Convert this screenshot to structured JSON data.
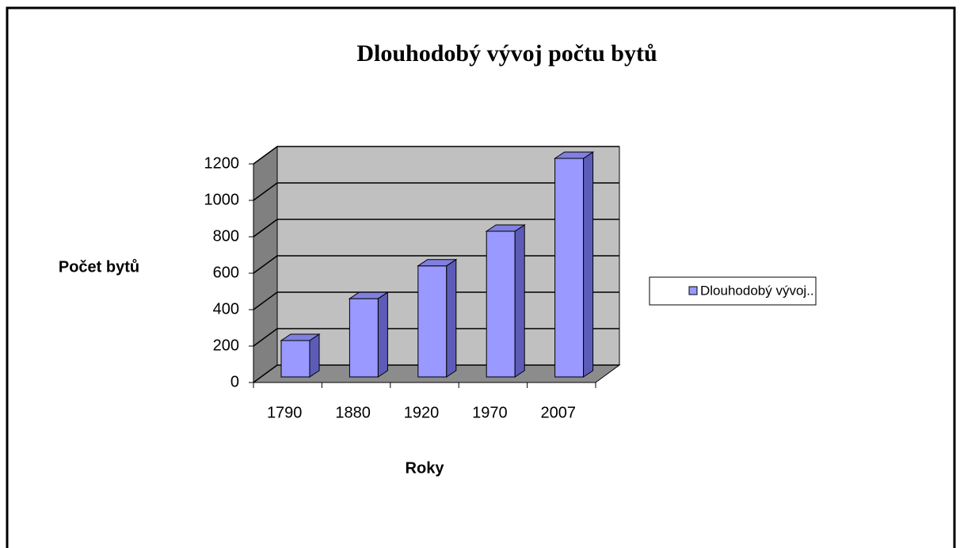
{
  "chart_data": {
    "type": "bar",
    "title": "Dlouhodobý vývoj počtu bytů",
    "x_label": "Roky",
    "y_label": "Počet bytů",
    "categories": [
      "1790",
      "1880",
      "1920",
      "1970",
      "2007"
    ],
    "series": [
      {
        "name": "Dlouhodobý vývoj..",
        "color": "#9999ff",
        "values": [
          200,
          430,
          610,
          800,
          1200
        ]
      }
    ],
    "ylim": [
      0,
      1200
    ],
    "yticks": [
      0,
      200,
      400,
      600,
      800,
      1000,
      1200
    ],
    "grid": true,
    "legend": "right"
  }
}
